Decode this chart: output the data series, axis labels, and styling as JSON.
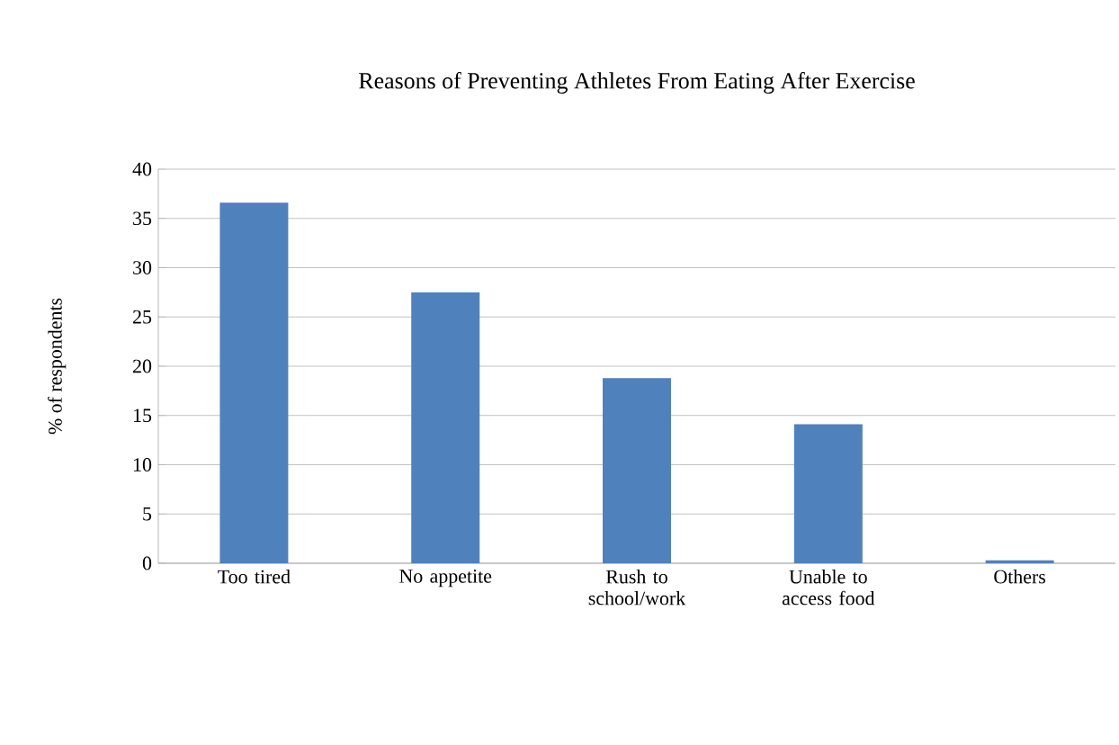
{
  "chart_data": {
    "type": "bar",
    "title": "Reasons of Preventing Athletes From Eating After Exercise",
    "ylabel": "% of respondents",
    "categories": [
      "Too tired",
      "No appetite",
      "Rush to school/work",
      "Unable to access food",
      "Others"
    ],
    "values": [
      36.6,
      27.5,
      18.8,
      14.1,
      0.3
    ],
    "color": "#4f81bd",
    "ylim": [
      0,
      40
    ],
    "yticks": [
      0,
      5,
      10,
      15,
      20,
      25,
      30,
      35,
      40
    ],
    "grid": "y"
  }
}
